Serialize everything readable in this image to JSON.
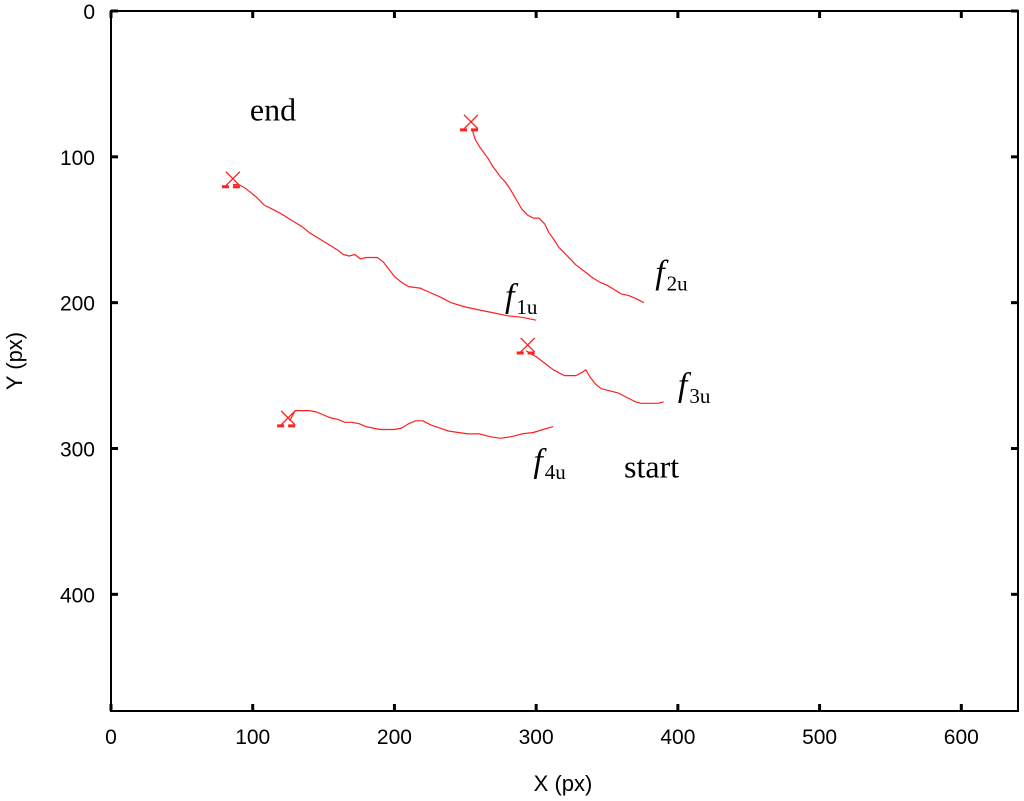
{
  "chart_data": {
    "type": "line",
    "title": "",
    "xlabel": "X (px)",
    "ylabel": "Y (px)",
    "xlim": [
      0,
      640
    ],
    "ylim": [
      0,
      480
    ],
    "y_inverted": true,
    "xticks": [
      0,
      100,
      200,
      300,
      400,
      500,
      600
    ],
    "yticks": [
      0,
      100,
      200,
      300,
      400
    ],
    "grid": false,
    "line_color": "#ff2020",
    "marker_color": "#ff2020",
    "series": [
      {
        "name": "",
        "label_main": "f",
        "label_sub": "1u",
        "label_at": [
          278,
          203
        ],
        "x": [
          300,
          290,
          280,
          270,
          260,
          250,
          240,
          232,
          225,
          218,
          210,
          205,
          200,
          196,
          192,
          188,
          184,
          180,
          176,
          172,
          168,
          164,
          160,
          155,
          150,
          145,
          140,
          135,
          130,
          125,
          120,
          114,
          108,
          103,
          98,
          94,
          90,
          86
        ],
        "y": [
          212,
          210,
          209,
          207,
          205,
          203,
          200,
          196,
          193,
          190,
          189,
          186,
          182,
          177,
          172,
          169,
          169,
          169,
          170,
          167,
          168,
          167,
          164,
          161,
          158,
          155,
          152,
          148,
          145,
          142,
          139,
          136,
          133,
          128,
          124,
          121,
          119,
          119
        ]
      },
      {
        "name": "",
        "label_main": "f",
        "label_sub": "2u",
        "label_at": [
          384,
          187
        ],
        "x": [
          376,
          370,
          365,
          360,
          355,
          350,
          345,
          340,
          336,
          332,
          328,
          324,
          320,
          316,
          312,
          309,
          306,
          302,
          298,
          294,
          290,
          287,
          284,
          281,
          278,
          275,
          272,
          269,
          266,
          263,
          260,
          257,
          255
        ],
        "y": [
          200,
          197,
          195,
          194,
          191,
          188,
          186,
          183,
          180,
          177,
          174,
          170,
          166,
          162,
          156,
          152,
          146,
          142,
          142,
          140,
          136,
          131,
          126,
          121,
          117,
          114,
          110,
          106,
          101,
          97,
          93,
          88,
          82
        ]
      },
      {
        "name": "",
        "label_main": "f",
        "label_sub": "3u",
        "label_at": [
          400,
          264
        ],
        "x": [
          390,
          386,
          382,
          378,
          374,
          370,
          366,
          362,
          358,
          354,
          350,
          346,
          342,
          338,
          335,
          332,
          328,
          324,
          320,
          316,
          312,
          308,
          304,
          300,
          296,
          293
        ],
        "y": [
          268,
          269,
          269,
          269,
          269,
          268,
          266,
          264,
          262,
          261,
          260,
          259,
          256,
          251,
          246,
          248,
          250,
          250,
          250,
          248,
          246,
          243,
          240,
          237,
          235,
          233
        ]
      },
      {
        "name": "",
        "label_main": "f",
        "label_sub": "4u",
        "label_at": [
          298,
          316
        ],
        "x": [
          312,
          305,
          298,
          290,
          282,
          275,
          268,
          260,
          252,
          245,
          238,
          232,
          226,
          220,
          215,
          210,
          205,
          200,
          195,
          190,
          185,
          180,
          175,
          170,
          165,
          160,
          155,
          150,
          145,
          140,
          135,
          130,
          126
        ],
        "y": [
          285,
          287,
          289,
          290,
          292,
          293,
          292,
          290,
          290,
          289,
          288,
          286,
          284,
          281,
          281,
          283,
          286,
          287,
          287,
          287,
          286,
          285,
          283,
          282,
          282,
          280,
          279,
          277,
          275,
          274,
          274,
          274,
          281
        ]
      }
    ],
    "markers": [
      {
        "x": 86,
        "y": 115
      },
      {
        "x": 254,
        "y": 76
      },
      {
        "x": 294,
        "y": 229
      },
      {
        "x": 125,
        "y": 279
      }
    ],
    "annotations": [
      {
        "text": "end",
        "at": [
          98,
          75
        ]
      },
      {
        "text": "start",
        "at": [
          362,
          320
        ]
      }
    ]
  }
}
